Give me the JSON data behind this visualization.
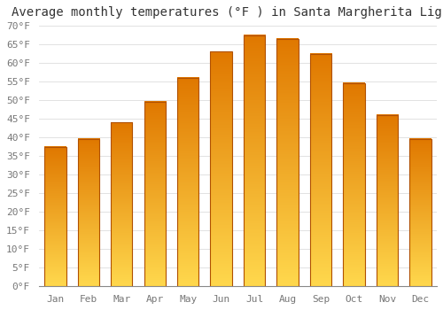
{
  "title": "Average monthly temperatures (°F ) in Santa Margherita Ligure",
  "months": [
    "Jan",
    "Feb",
    "Mar",
    "Apr",
    "May",
    "Jun",
    "Jul",
    "Aug",
    "Sep",
    "Oct",
    "Nov",
    "Dec"
  ],
  "values": [
    37.5,
    39.5,
    44.0,
    49.5,
    56.0,
    63.0,
    67.5,
    66.5,
    62.5,
    54.5,
    46.0,
    39.5
  ],
  "bar_color_bottom": "#FFD84D",
  "bar_color_top": "#E07800",
  "bar_edge_color": "#B05000",
  "ylim": [
    0,
    70
  ],
  "yticks": [
    0,
    5,
    10,
    15,
    20,
    25,
    30,
    35,
    40,
    45,
    50,
    55,
    60,
    65,
    70
  ],
  "background_color": "#ffffff",
  "grid_color": "#dddddd",
  "title_fontsize": 10,
  "tick_fontsize": 8,
  "bar_width": 0.65
}
